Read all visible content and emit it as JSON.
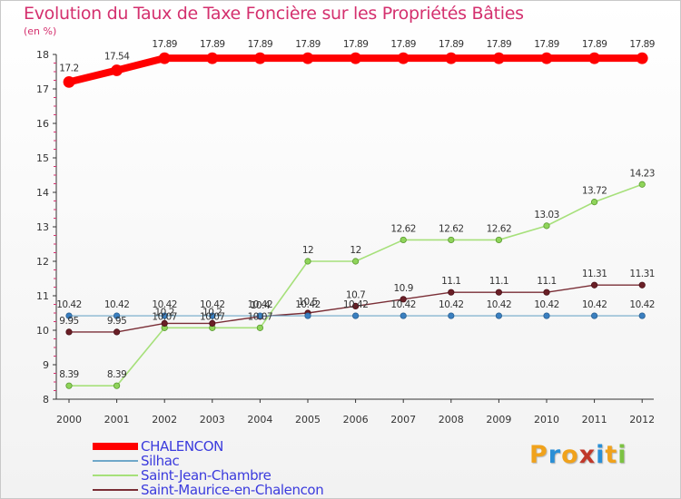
{
  "chart_data": {
    "type": "line",
    "title": "Evolution du Taux de Taxe Foncière sur les Propriétés Bâties",
    "ylabel": "(en %)",
    "xlabel": "",
    "ylim": [
      8,
      18
    ],
    "yticks": [
      "8",
      "9",
      "10",
      "11",
      "12",
      "13",
      "14",
      "15",
      "16",
      "17",
      "18"
    ],
    "categories": [
      "2000",
      "2001",
      "2002",
      "2003",
      "2004",
      "2005",
      "2006",
      "2007",
      "2008",
      "2009",
      "2010",
      "2011",
      "2012"
    ],
    "series": [
      {
        "name": "CHALENCON",
        "color": "#ff0000",
        "values": [
          17.2,
          17.54,
          17.89,
          17.89,
          17.89,
          17.89,
          17.89,
          17.89,
          17.89,
          17.89,
          17.89,
          17.89,
          17.89
        ],
        "labels": [
          "17.2",
          "17.54",
          "17.89",
          "17.89",
          "17.89",
          "17.89",
          "17.89",
          "17.89",
          "17.89",
          "17.89",
          "17.89",
          "17.89",
          "17.89"
        ]
      },
      {
        "name": "Silhac",
        "color": "#6fa8c9",
        "values": [
          10.42,
          10.42,
          10.42,
          10.42,
          10.42,
          10.42,
          10.42,
          10.42,
          10.42,
          10.42,
          10.42,
          10.42,
          10.42
        ],
        "labels": [
          "10.42",
          "10.42",
          "10.42",
          "10.42",
          "10.42",
          "10.42",
          "10.42",
          "10.42",
          "10.42",
          "10.42",
          "10.42",
          "10.42",
          "10.42"
        ]
      },
      {
        "name": "Saint-Jean-Chambre",
        "color": "#a6e07a",
        "values": [
          8.39,
          8.39,
          10.07,
          10.07,
          10.07,
          12,
          12,
          12.62,
          12.62,
          12.62,
          13.03,
          13.72,
          14.23
        ],
        "labels": [
          "8.39",
          "8.39",
          "10.07",
          "10.07",
          "10.07",
          "12",
          "12",
          "12.62",
          "12.62",
          "12.62",
          "13.03",
          "13.72",
          "14.23"
        ]
      },
      {
        "name": "Saint-Maurice-en-Chalencon",
        "color": "#7a2e36",
        "values": [
          9.95,
          9.95,
          10.2,
          10.2,
          10.4,
          10.5,
          10.7,
          10.9,
          11.1,
          11.1,
          11.1,
          11.31,
          11.31
        ],
        "labels": [
          "9.95",
          "9.95",
          "10.2",
          "10.2",
          "10.4",
          "10.5",
          "10.7",
          "10.9",
          "11.1",
          "11.1",
          "11.1",
          "11.31",
          "11.31"
        ]
      }
    ]
  },
  "logo": {
    "letters": [
      "P",
      "r",
      "o",
      "x",
      "i",
      "t",
      "i"
    ]
  }
}
